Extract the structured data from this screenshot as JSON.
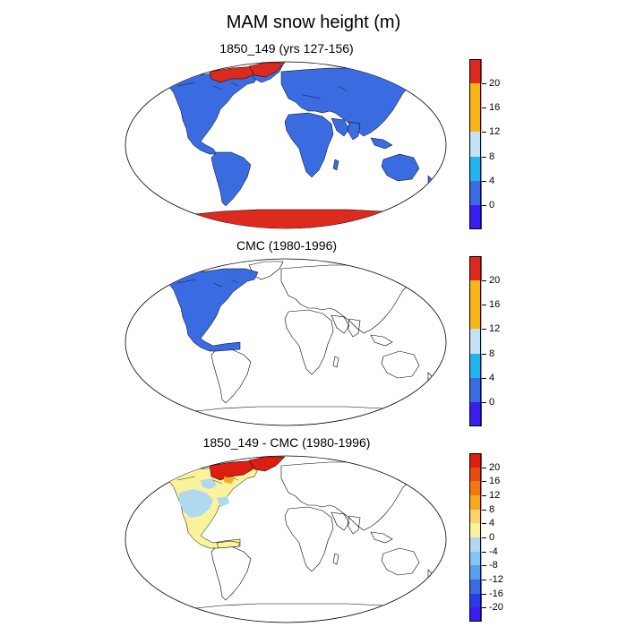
{
  "title": "MAM snow height (m)",
  "colors": {
    "c0": "#3a1df0",
    "c1": "#3a6be0",
    "c2": "#22b4ee",
    "c3": "#c5e2f4",
    "c4": "#f7b614",
    "c5": "#dc2a1e",
    "land_snow": "#3a6be0",
    "diff_neg_deep": "#3a1df0",
    "diff_pale_blue": "#b0d8f0",
    "diff_pale_yellow": "#fbf29c",
    "diff_red": "#dc1e12"
  },
  "panels": [
    {
      "title": "1850_149 (yrs 127-156)",
      "colorbar": {
        "ticks": [
          "20",
          "16",
          "12",
          "8",
          "4",
          "0"
        ],
        "segments": [
          "#3a1df0",
          "#3a6be0",
          "#22b4ee",
          "#c5e2f4",
          "#f7b614",
          "#f7b614",
          "#dc2a1e"
        ]
      }
    },
    {
      "title": "CMC (1980-1996)",
      "colorbar": {
        "ticks": [
          "20",
          "16",
          "12",
          "8",
          "4",
          "0"
        ],
        "segments": [
          "#3a1df0",
          "#3a6be0",
          "#22b4ee",
          "#c5e2f4",
          "#f7b614",
          "#f7b614",
          "#dc2a1e"
        ]
      }
    },
    {
      "title": "1850_149 - CMC (1980-1996)",
      "colorbar": {
        "ticks": [
          "20",
          "16",
          "12",
          "8",
          "4",
          "0",
          "-4",
          "-8",
          "-12",
          "-16",
          "-20"
        ],
        "segments": [
          "#3a1df0",
          "#2a3ae4",
          "#3a6be0",
          "#5aa0ec",
          "#86c4f2",
          "#b0d8f0",
          "#fbf29c",
          "#fbd36e",
          "#f7a81e",
          "#f07a10",
          "#e84a10",
          "#dc1e12"
        ]
      }
    }
  ]
}
